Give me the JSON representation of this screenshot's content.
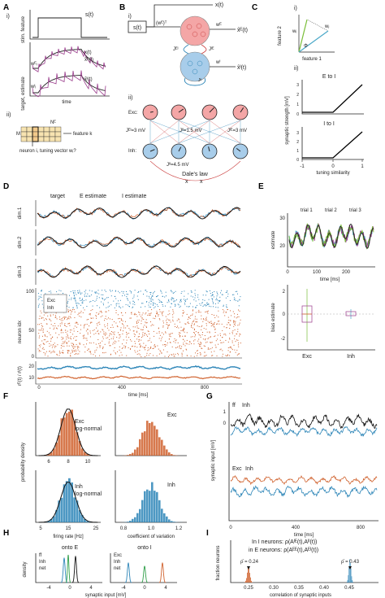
{
  "panels": [
    "A",
    "B",
    "C",
    "D",
    "E",
    "F",
    "G",
    "H",
    "I"
  ],
  "A": {
    "sub_i": "i)",
    "sub_ii": "ii)",
    "stim_label": "stim. feature",
    "s_label": "s(t)",
    "target_label": "target, estimate",
    "x_label": "x(t)",
    "xE_label": "x̂ᴱ(t)",
    "xI_label": "x̂ᴵ(t)",
    "wE_label": "wᴱᵢ",
    "wI_label": "wᴵᵢ",
    "time_label": "time",
    "N_label": "Nᴱ",
    "M_label": "M",
    "feature_label": "feature k",
    "neuron_label": "neuron i, tuning vector wᵢ?"
  },
  "B": {
    "sub_i": "i)",
    "sub_ii": "ii)",
    "s_label": "s(t)",
    "wET_label": "(wᴱ)ᵀ",
    "x_out": "x(t)",
    "wE_out": "wᴱ",
    "xE_out": "x̂ᴱ(t)",
    "wI_out": "wᴵ",
    "xI_out": "x̂ᴵ(t)",
    "JIE": "Jᴵᴱ",
    "JEI": "Jᴱᴵ",
    "JII": "Jᴵᴵ",
    "exc_label": "Exc:",
    "inh_label": "Inh:",
    "J_EI_val": "Jᴱᴵ=3 mV",
    "J_II1_val": "Jᴵᴵ=1.5 mV",
    "J_IE_val": "Jᴵᴱ=3 mV",
    "J_II2_val": "Jᴵᴵ=4.5 mV",
    "dales_law": "Dale's law"
  },
  "C": {
    "sub_i": "i)",
    "sub_ii": "ii)",
    "feature1": "feature 1",
    "feature2": "feature 2",
    "w_i": "wᵢ",
    "w_j": "wⱼ",
    "phi": "Φ",
    "e_to_i": "E to I",
    "i_to_i": "I to I",
    "ylabel": "synaptic strength [mV]",
    "xlabel": "tuning similarity",
    "xticks": [
      "-1",
      "0",
      "1"
    ],
    "yticks_top": [
      "0",
      "1",
      "2",
      "3"
    ],
    "yticks_bottom": [
      "0",
      "1",
      "2",
      "3"
    ]
  },
  "D": {
    "legend_target": "target",
    "legend_E": "E estimate",
    "legend_I": "I estimate",
    "dim1": "dim.1",
    "dim2": "dim.2",
    "dim3": "dim.3",
    "raster_ylabel": "neuron idx",
    "raster_yticks": [
      "100",
      "50",
      "0"
    ],
    "legend_exc": "Exc",
    "legend_inh": "Inh",
    "rate_ylabel": "rᴱ(t) / rᴵ(t)",
    "rate_yticks": [
      "20",
      "10"
    ],
    "xticks": [
      "0",
      "400",
      "800"
    ],
    "xlabel": "time [ms]"
  },
  "E": {
    "trial1": "trial 1",
    "trial2": "trial 2",
    "trial3": "trial 3",
    "ylabel": "estimate",
    "yticks": [
      "30",
      "20"
    ],
    "xticks": [
      "0",
      "100",
      "200"
    ],
    "xlabel": "time [ms]",
    "bias_ylabel": "bias estimate",
    "bias_yticks": [
      "2",
      "0",
      "-2"
    ],
    "cats": [
      "Exc",
      "Inh"
    ]
  },
  "F": {
    "ylabel": "probability density",
    "exc": "Exc",
    "inh": "Inh",
    "lognormal": "log-normal",
    "rate_xlabel": "firing rate [Hz]",
    "cv_xlabel": "coefficient of variation",
    "top_xticks": [
      "6",
      "8",
      "10"
    ],
    "bot_xticks": [
      "5",
      "15",
      "25"
    ],
    "cv_xticks": [
      "0.8",
      "1.0",
      "1.2"
    ]
  },
  "G": {
    "ff": "ff",
    "inh": "Inh",
    "exc": "Exc",
    "ylabel": "synaptic input [mV]",
    "yticks": [
      "1",
      "0"
    ],
    "xticks": [
      "0",
      "400",
      "800"
    ],
    "xlabel": "time [ms]"
  },
  "H": {
    "onto_E": "onto E",
    "onto_I": "onto I",
    "ff": "ff",
    "inh": "Inh",
    "net": "net",
    "exc": "Exc",
    "ylabel": "density",
    "xticks": [
      "-4",
      "0",
      "4"
    ],
    "xlabel": "synaptic input [mV]"
  },
  "I": {
    "in_I": "In I neurons: ρ(Aᴵᴱ(t),Aᴵᴵ(t))",
    "in_E": "in E neurons: ρ(Aᴱᴱ(t),Aᴱᴵ(t))",
    "rho1": "ρ̄ = 0.24",
    "rho2": "ρ̄ = 0.43",
    "ylabel": "fraction neurons",
    "xticks": [
      "0.25",
      "0.30",
      "0.35",
      "0.40",
      "0.45"
    ],
    "xlabel": "correlation of synaptic inputs"
  },
  "colors": {
    "exc": "#d0622e",
    "inh": "#2e86b8",
    "target": "#111111",
    "trial1": "#4aa8c8",
    "trial2": "#9a3c8c",
    "trial3": "#7bbf3a",
    "net": "#2e9e48",
    "pink": "#f4a6a6",
    "lightblue": "#a8cdea"
  }
}
